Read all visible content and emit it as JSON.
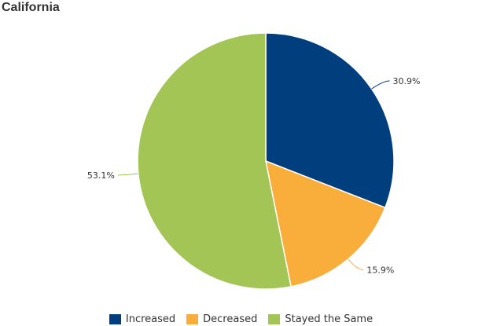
{
  "header": {
    "title": "California"
  },
  "chart_data": {
    "type": "pie",
    "title": "California",
    "legend_position": "bottom",
    "start_angle": "top",
    "direction": "clockwise",
    "series": [
      {
        "values": [
          {
            "name": "Increased",
            "value": 30.9,
            "label": "30.9%",
            "color": "#003e7e"
          },
          {
            "name": "Decreased",
            "value": 15.9,
            "label": "15.9%",
            "color": "#f9ae3b"
          },
          {
            "name": "Stayed the Same",
            "value": 53.1,
            "label": "53.1%",
            "color": "#a2c556"
          }
        ]
      }
    ]
  }
}
